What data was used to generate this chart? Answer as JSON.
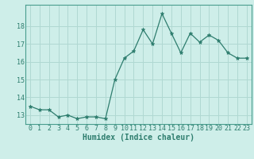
{
  "x": [
    0,
    1,
    2,
    3,
    4,
    5,
    6,
    7,
    8,
    9,
    10,
    11,
    12,
    13,
    14,
    15,
    16,
    17,
    18,
    19,
    20,
    21,
    22,
    23
  ],
  "y": [
    13.5,
    13.3,
    13.3,
    12.9,
    13.0,
    12.8,
    12.9,
    12.9,
    12.8,
    15.0,
    16.2,
    16.6,
    17.8,
    17.0,
    18.7,
    17.6,
    16.5,
    17.6,
    17.1,
    17.5,
    17.2,
    16.5,
    16.2,
    16.2
  ],
  "line_color": "#2e7d6e",
  "marker": "*",
  "marker_size": 3.5,
  "bg_color": "#ceeee9",
  "grid_color": "#b0d8d2",
  "xlabel": "Humidex (Indice chaleur)",
  "xlim": [
    -0.5,
    23.5
  ],
  "ylim": [
    12.5,
    19.2
  ],
  "yticks": [
    13,
    14,
    15,
    16,
    17,
    18
  ],
  "xticks": [
    0,
    1,
    2,
    3,
    4,
    5,
    6,
    7,
    8,
    9,
    10,
    11,
    12,
    13,
    14,
    15,
    16,
    17,
    18,
    19,
    20,
    21,
    22,
    23
  ],
  "font_size": 6.0,
  "xlabel_fontsize": 7.0,
  "tick_color": "#2e7d6e",
  "axis_color": "#2e7d6e",
  "spine_color": "#4a9e8e"
}
